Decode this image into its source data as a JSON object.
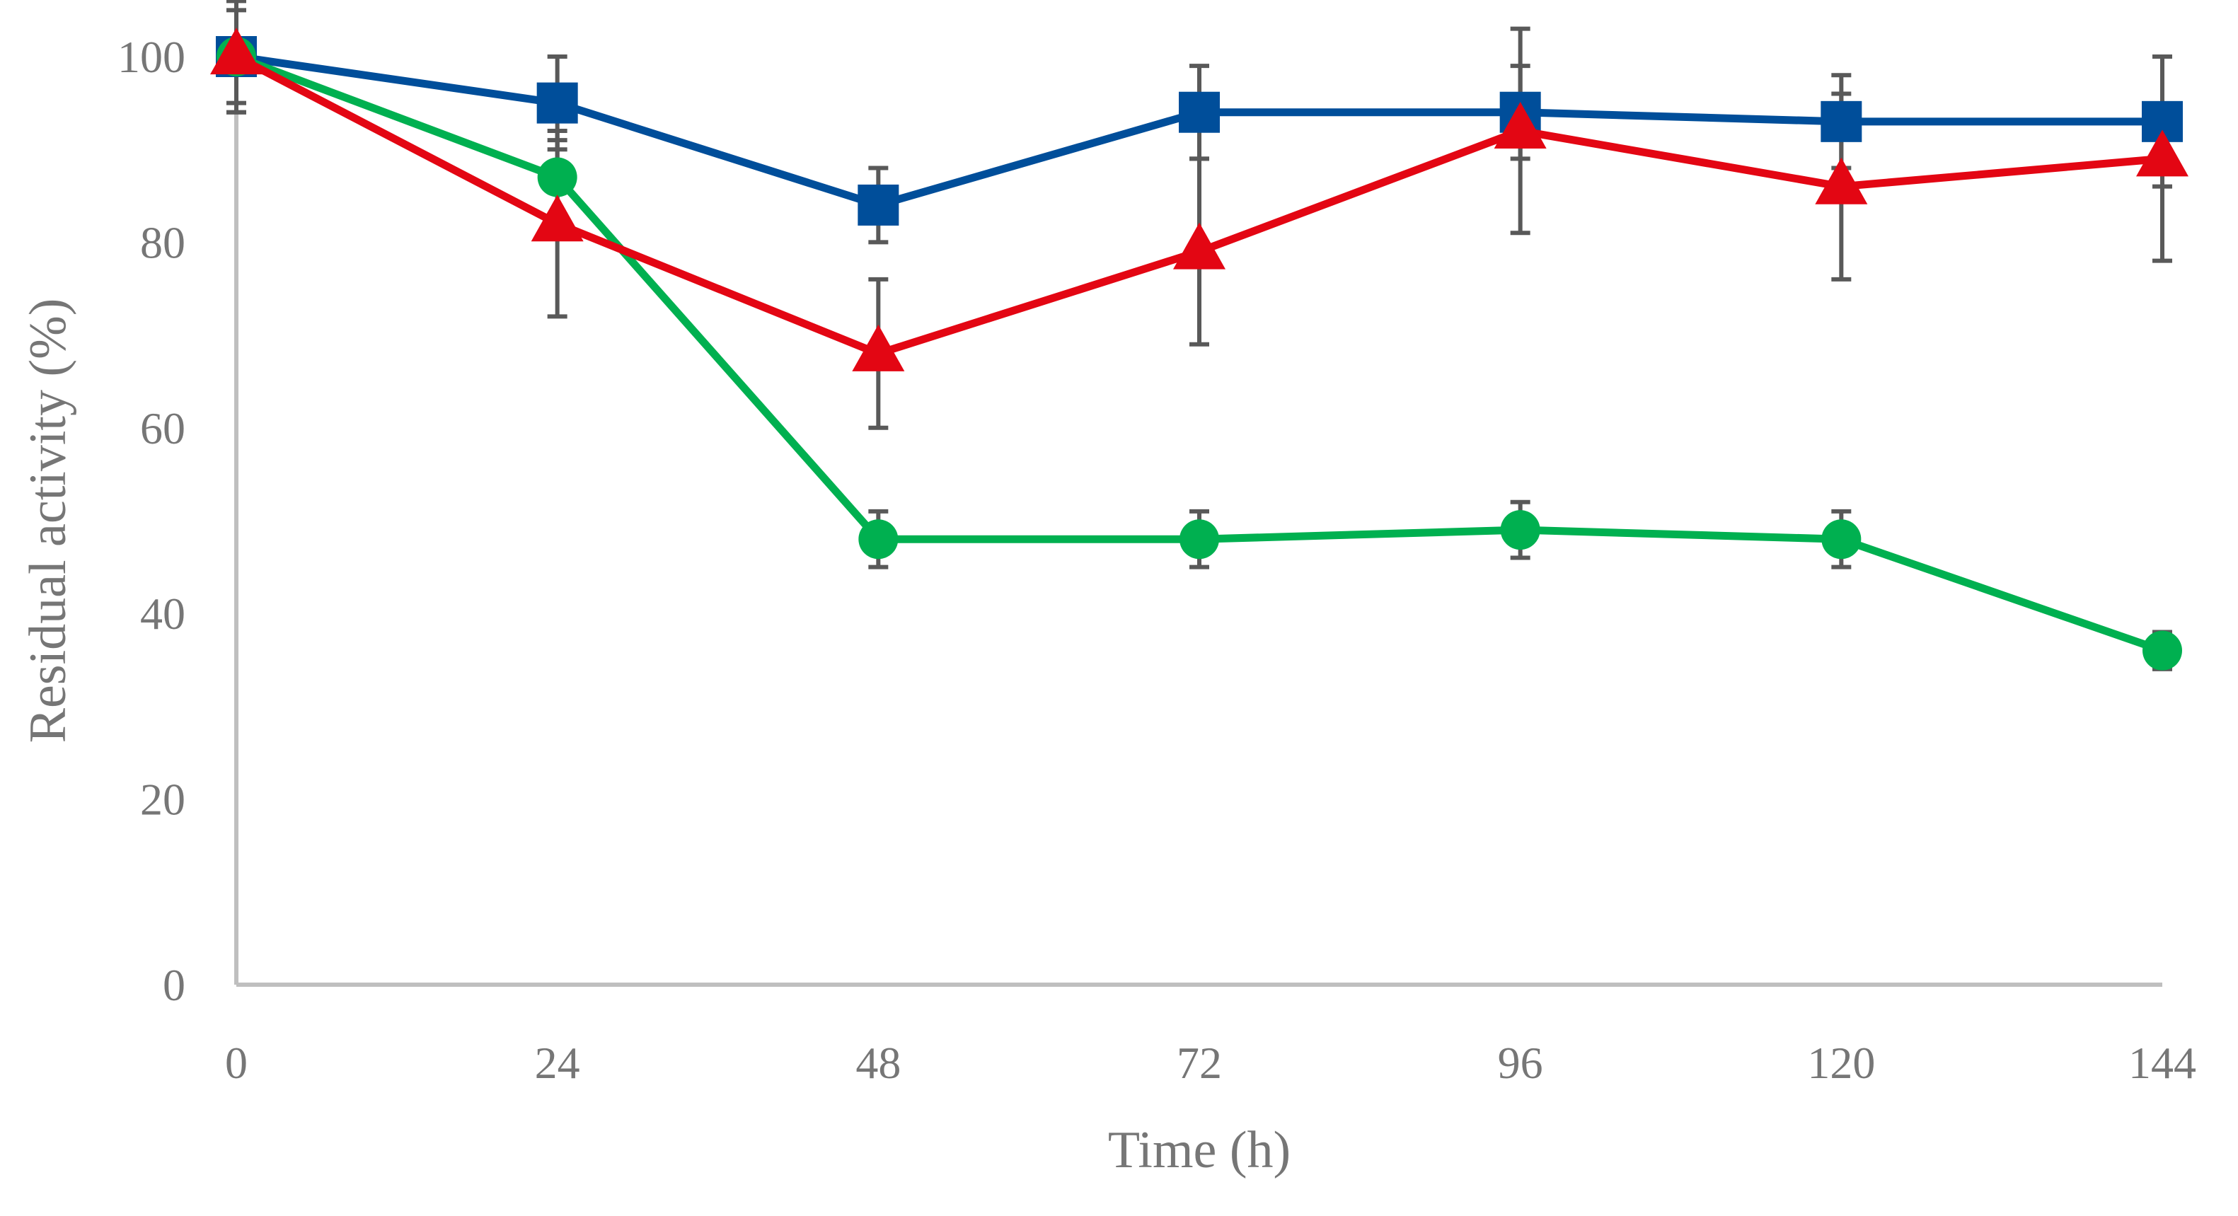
{
  "chart_data": {
    "type": "line",
    "title": "",
    "xlabel": "Time (h)",
    "ylabel": "Residual activity (%)",
    "x": [
      0,
      24,
      48,
      72,
      96,
      120,
      144
    ],
    "x_tick_labels": [
      "0",
      "24",
      "48",
      "72",
      "96",
      "120",
      "144"
    ],
    "y_tick_labels": [
      "0",
      "20",
      "40",
      "60",
      "80",
      "100"
    ],
    "xlim": [
      0,
      144
    ],
    "ylim": [
      0,
      100
    ],
    "grid": false,
    "legend": "none",
    "series": [
      {
        "color": "#004e9a",
        "marker": "square",
        "values": [
          100,
          95,
          84,
          94,
          94,
          93,
          93
        ],
        "error": [
          6,
          5,
          4,
          5,
          5,
          5,
          7
        ]
      },
      {
        "color": "#00b050",
        "marker": "circle",
        "values": [
          100,
          87,
          48,
          48,
          49,
          48,
          36
        ],
        "error": [
          5,
          4,
          3,
          3,
          3,
          3,
          2
        ]
      },
      {
        "color": "#e30613",
        "marker": "triangle",
        "values": [
          100,
          82,
          68,
          79,
          92,
          86,
          89
        ],
        "error": [
          6,
          10,
          8,
          10,
          11,
          10,
          11
        ]
      }
    ]
  }
}
